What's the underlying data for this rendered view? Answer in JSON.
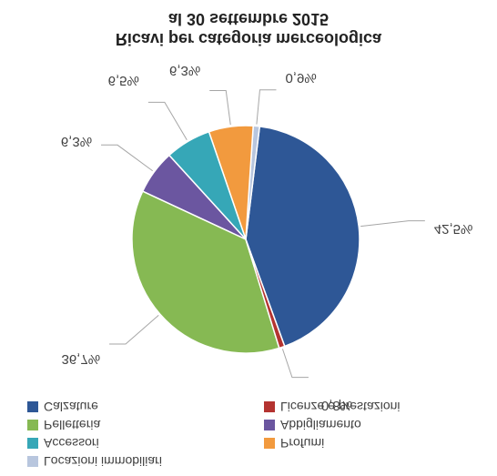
{
  "title_line1": "Ricavi per categoria merceologica",
  "title_line2": "al 30 settembre 2015",
  "chart": {
    "type": "pie",
    "background_color": "#ffffff",
    "label_fontsize": 15,
    "title_fontsize": 18,
    "legend_fontsize": 14,
    "leader_color": "#a6a6a6",
    "slices": [
      {
        "name": "Calzature",
        "value": 42.5,
        "color": "#2e5796",
        "label": "42,5%"
      },
      {
        "name": "Locazioni immobiliari",
        "value": 0.9,
        "color": "#b8c6de",
        "label": "0,9%"
      },
      {
        "name": "Profumi",
        "value": 6.3,
        "color": "#f29a3e",
        "label": "6,3%"
      },
      {
        "name": "Accessori",
        "value": 6.5,
        "color": "#36a7b7",
        "label": "6,5%"
      },
      {
        "name": "Abbigliamento",
        "value": 6.3,
        "color": "#6b56a0",
        "label": "6,3%"
      },
      {
        "name": "Pelletteria",
        "value": 36.7,
        "color": "#86b953",
        "label": "36,7%"
      },
      {
        "name": "Licenze e prestazioni",
        "value": 0.8,
        "color": "#b43330",
        "label": "0,8%"
      }
    ],
    "start_angle_deg": 70
  },
  "legend": {
    "rows": [
      {
        "left": {
          "swatch": "#b8c6de",
          "text": "Locazioni immobiliari"
        },
        "right": null
      },
      {
        "left": {
          "swatch": "#36a7b7",
          "text": "Accessori"
        },
        "right": {
          "swatch": "#f29a3e",
          "text": "Profumi"
        }
      },
      {
        "left": {
          "swatch": "#86b953",
          "text": "Pelletteria"
        },
        "right": {
          "swatch": "#6b56a0",
          "text": "Abbigliamento"
        }
      },
      {
        "left": {
          "swatch": "#2e5796",
          "text": "Calzature"
        },
        "right": {
          "swatch": "#b43330",
          "text": "Licenze e prestazioni"
        }
      }
    ]
  }
}
